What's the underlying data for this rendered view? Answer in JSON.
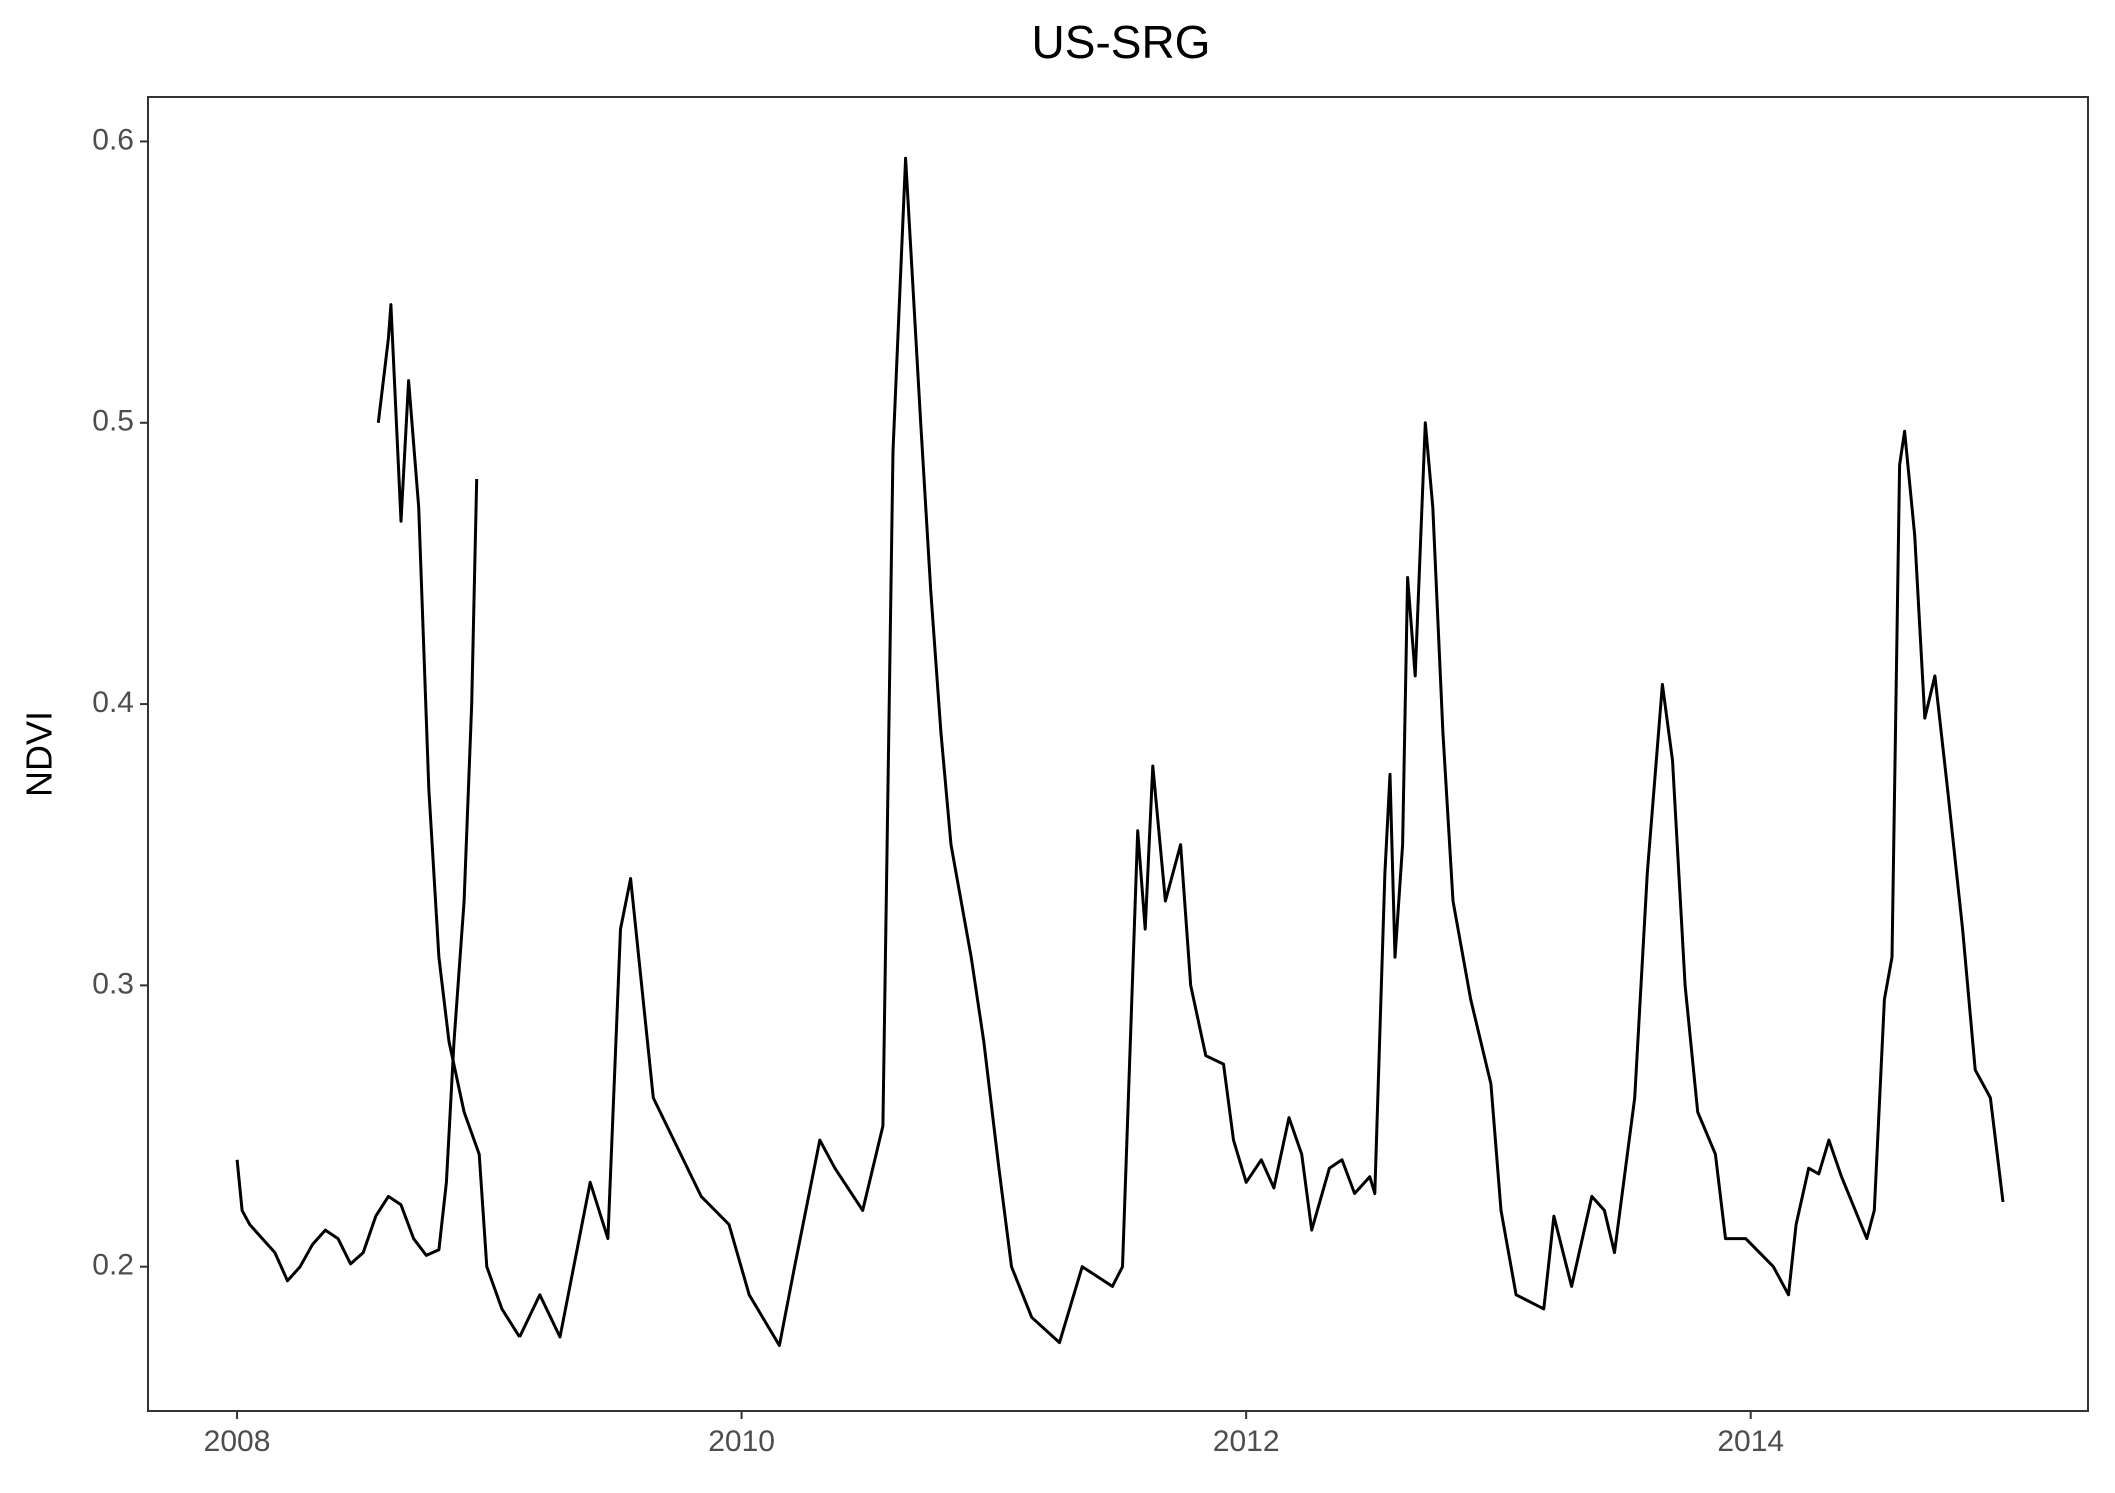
{
  "chart_data": {
    "type": "line",
    "title": "US-SRG",
    "y_label": "NDVI",
    "color": "#000000",
    "x": [
      2008.0,
      2008.02,
      2008.05,
      2008.1,
      2008.15,
      2008.2,
      2008.25,
      2008.3,
      2008.35,
      2008.4,
      2008.45,
      2008.5,
      2008.55,
      2008.6,
      2008.65,
      2008.7,
      2008.75,
      2008.8,
      2008.83,
      2008.86,
      2008.9,
      2008.93,
      2008.95,
      2009.0,
      2009.05,
      2009.12,
      2009.2,
      2009.28,
      2009.4,
      2009.47,
      2009.52,
      2009.56,
      2009.65,
      2009.84,
      2009.95,
      2010.03,
      2010.15,
      2010.21,
      2010.25,
      2010.31,
      2010.37,
      2010.48,
      2010.56,
      2010.6,
      2010.65,
      2010.71,
      2010.75,
      2010.79,
      2010.83,
      2010.91,
      2010.96,
      2011.02,
      2011.07,
      2011.15,
      2011.26,
      2011.35,
      2011.47,
      2011.51,
      2011.57,
      2011.6,
      2011.63,
      2011.68,
      2011.74,
      2011.78,
      2011.84,
      2011.91,
      2011.95,
      2012.0,
      2012.06,
      2012.11,
      2012.17,
      2012.22,
      2012.26,
      2012.33,
      2012.38,
      2012.43,
      2012.49,
      2012.51,
      2012.55,
      2012.57,
      2012.59,
      2012.62,
      2012.64,
      2012.67,
      2012.71,
      2012.74,
      2012.78,
      2012.82,
      2012.89,
      2012.97,
      2013.01,
      2013.07,
      2013.18,
      2013.22,
      2013.29,
      2013.37,
      2013.42,
      2013.46,
      2013.54,
      2013.59,
      2013.65,
      2013.69,
      2013.74,
      2013.79,
      2013.86,
      2013.9,
      2013.98,
      2014.09,
      2014.15,
      2014.18,
      2014.23,
      2014.27,
      2014.31,
      2014.36,
      2014.46,
      2014.49,
      2014.53,
      2014.56,
      2014.59,
      2014.61,
      2014.65,
      2014.69,
      2014.73,
      2014.78,
      2014.84,
      2014.89,
      2014.95,
      2015.0
    ],
    "values": [
      0.238,
      0.22,
      0.215,
      0.21,
      0.205,
      0.195,
      0.2,
      0.208,
      0.213,
      0.21,
      0.201,
      0.205,
      0.218,
      0.225,
      0.222,
      0.21,
      0.204,
      0.206,
      0.23,
      0.28,
      0.33,
      0.4,
      0.48,
      null,
      null,
      0.175,
      0.19,
      0.175,
      0.23,
      0.21,
      0.32,
      0.338,
      0.26,
      0.225,
      0.215,
      0.19,
      0.172,
      0.2,
      0.218,
      0.245,
      0.235,
      0.22,
      0.25,
      0.49,
      0.594,
      0.5,
      0.44,
      0.39,
      0.35,
      0.31,
      0.28,
      0.235,
      0.2,
      0.182,
      0.173,
      0.2,
      0.193,
      0.2,
      0.355,
      0.32,
      0.378,
      0.33,
      0.35,
      0.3,
      0.275,
      0.272,
      0.245,
      0.23,
      0.238,
      0.228,
      0.253,
      0.24,
      0.213,
      0.235,
      0.238,
      0.226,
      0.232,
      0.226,
      0.34,
      0.375,
      0.31,
      0.35,
      0.445,
      0.41,
      0.5,
      0.47,
      0.39,
      0.33,
      0.295,
      0.265,
      0.22,
      0.19,
      0.185,
      0.218,
      0.193,
      0.225,
      0.22,
      0.205,
      0.26,
      0.34,
      0.407,
      0.38,
      0.3,
      0.255,
      0.24,
      0.21,
      0.21,
      0.2,
      0.19,
      0.215,
      0.235,
      0.233,
      0.245,
      0.232,
      0.21,
      0.22,
      0.295,
      0.31,
      0.485,
      0.497,
      0.46,
      0.395,
      0.41,
      0.37,
      0.32,
      0.27,
      0.26,
      0.223
    ],
    "peak_2008": {
      "x": [
        2008.56,
        2008.6,
        2008.61,
        2008.65,
        2008.68,
        2008.72,
        2008.76,
        2008.8,
        2008.84,
        2008.9,
        2008.96,
        2008.99,
        2009.05,
        2009.12
      ],
      "values": [
        0.5,
        0.53,
        0.542,
        0.465,
        0.515,
        0.47,
        0.37,
        0.31,
        0.28,
        0.255,
        0.24,
        0.2,
        0.185,
        0.175
      ]
    },
    "xlim": [
      2007.647,
      2015.337
    ],
    "ylim": [
      0.1487,
      0.6158
    ],
    "xticks": [
      2008,
      2010,
      2012,
      2014
    ],
    "yticks": [
      0.2,
      0.3,
      0.4,
      0.5,
      0.6
    ],
    "grid": false
  }
}
